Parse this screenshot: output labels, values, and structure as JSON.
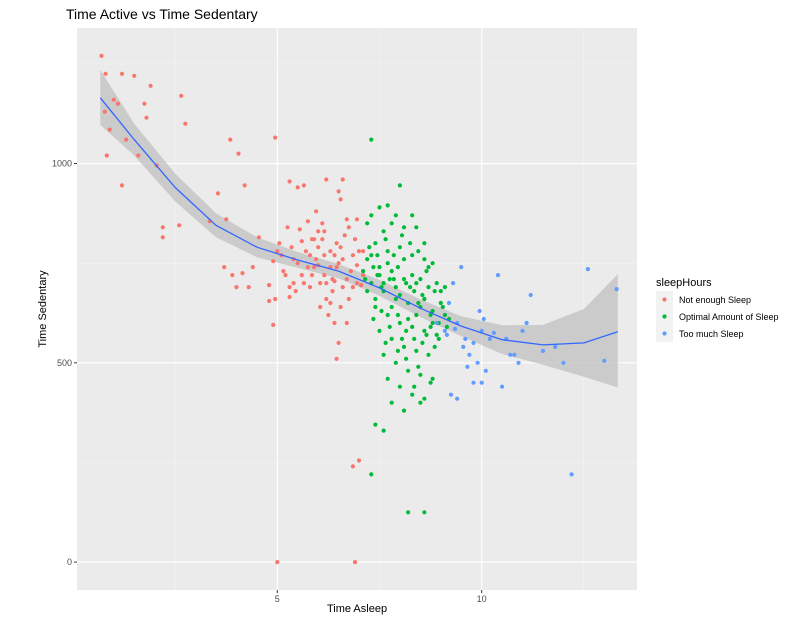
{
  "chart_data": {
    "type": "scatter",
    "title": "Time Active vs Time Sedentary",
    "xlabel": "Time Asleep",
    "ylabel": "Time Sedentary",
    "xlim": [
      0.1,
      13.8
    ],
    "ylim": [
      -70,
      1340
    ],
    "x_ticks": [
      5,
      10
    ],
    "x_tick_labels": [
      "5",
      "10"
    ],
    "y_ticks": [
      0,
      500,
      1000
    ],
    "y_tick_labels": [
      "0",
      "500",
      "1000"
    ],
    "grid": true,
    "legend": {
      "title": "sleepHours",
      "position": "right",
      "entries": [
        {
          "label": "Not enough Sleep",
          "color": "#F8766D"
        },
        {
          "label": "Optimal Amount of Sleep",
          "color": "#00BA38"
        },
        {
          "label": "Too much Sleep",
          "color": "#619CFF"
        }
      ]
    },
    "colors": {
      "panel": "#EBEBEB",
      "grid_major": "#FFFFFF",
      "grid_minor": "#F5F5F5",
      "smooth_line": "#3366FF",
      "confidence_band": "#BEBEBE"
    },
    "smooth": {
      "method": "loess",
      "x": [
        0.67,
        1.5,
        2.5,
        3.5,
        4.5,
        5.5,
        6.5,
        7.5,
        8.5,
        9.5,
        10.5,
        11.5,
        12.5,
        13.33
      ],
      "y": [
        1165,
        1060,
        940,
        845,
        790,
        758,
        730,
        688,
        637,
        592,
        558,
        545,
        550,
        578
      ],
      "lower": [
        1097,
        1020,
        905,
        815,
        765,
        738,
        712,
        668,
        615,
        567,
        522,
        495,
        465,
        438
      ],
      "upper": [
        1235,
        1100,
        975,
        875,
        815,
        778,
        748,
        708,
        659,
        617,
        594,
        595,
        635,
        722
      ]
    },
    "series": [
      {
        "name": "Not enough Sleep",
        "points": [
          [
            0.7,
            1270
          ],
          [
            0.8,
            1225
          ],
          [
            0.78,
            1130
          ],
          [
            0.9,
            1085
          ],
          [
            1.0,
            1160
          ],
          [
            1.1,
            1150
          ],
          [
            1.2,
            1225
          ],
          [
            0.83,
            1020
          ],
          [
            1.3,
            1060
          ],
          [
            1.5,
            1220
          ],
          [
            1.6,
            1020
          ],
          [
            1.75,
            1150
          ],
          [
            1.8,
            1115
          ],
          [
            1.9,
            1195
          ],
          [
            1.2,
            945
          ],
          [
            2.05,
            995
          ],
          [
            2.2,
            840
          ],
          [
            2.2,
            815
          ],
          [
            2.6,
            845
          ],
          [
            2.65,
            1170
          ],
          [
            2.75,
            1100
          ],
          [
            3.35,
            855
          ],
          [
            3.55,
            925
          ],
          [
            3.75,
            860
          ],
          [
            3.85,
            1060
          ],
          [
            4.05,
            1025
          ],
          [
            4.2,
            945
          ],
          [
            3.7,
            740
          ],
          [
            3.9,
            720
          ],
          [
            4.15,
            725
          ],
          [
            4.4,
            740
          ],
          [
            4.55,
            815
          ],
          [
            4.8,
            695
          ],
          [
            4.9,
            755
          ],
          [
            5.0,
            780
          ],
          [
            4.8,
            655
          ],
          [
            4.95,
            660
          ],
          [
            5.3,
            955
          ],
          [
            5.5,
            940
          ],
          [
            4.0,
            690
          ],
          [
            4.3,
            690
          ],
          [
            4.9,
            595
          ],
          [
            4.95,
            1065
          ],
          [
            5.3,
            665
          ],
          [
            5.4,
            700
          ],
          [
            5.55,
            835
          ],
          [
            5.75,
            855
          ],
          [
            5.85,
            810
          ],
          [
            6.0,
            790
          ],
          [
            6.1,
            850
          ],
          [
            6.15,
            720
          ],
          [
            6.2,
            660
          ],
          [
            6.4,
            705
          ],
          [
            6.5,
            930
          ],
          [
            6.6,
            760
          ],
          [
            6.75,
            840
          ],
          [
            5.0,
            0
          ],
          [
            6.9,
            0
          ],
          [
            6.85,
            240
          ],
          [
            7.0,
            255
          ],
          [
            6.45,
            510
          ],
          [
            6.5,
            550
          ],
          [
            6.2,
            960
          ],
          [
            6.55,
            910
          ],
          [
            6.6,
            960
          ],
          [
            6.7,
            860
          ],
          [
            6.3,
            780
          ],
          [
            5.8,
            770
          ],
          [
            5.9,
            740
          ],
          [
            6.05,
            700
          ],
          [
            6.35,
            680
          ],
          [
            6.55,
            640
          ],
          [
            6.7,
            600
          ],
          [
            5.2,
            720
          ],
          [
            5.35,
            790
          ],
          [
            5.6,
            805
          ],
          [
            5.7,
            780
          ],
          [
            6.0,
            745
          ],
          [
            6.85,
            690
          ],
          [
            6.95,
            745
          ],
          [
            7.0,
            780
          ],
          [
            5.1,
            770
          ],
          [
            6.95,
            860
          ],
          [
            6.3,
            650
          ],
          [
            6.65,
            820
          ],
          [
            5.65,
            945
          ],
          [
            6.25,
            620
          ],
          [
            7.05,
            695
          ],
          [
            5.45,
            680
          ],
          [
            6.8,
            730
          ],
          [
            5.85,
            720
          ],
          [
            6.15,
            830
          ],
          [
            6.45,
            800
          ],
          [
            7.1,
            720
          ],
          [
            5.95,
            880
          ],
          [
            6.4,
            600
          ],
          [
            5.5,
            750
          ],
          [
            6.75,
            660
          ],
          [
            5.25,
            840
          ],
          [
            6.05,
            640
          ],
          [
            6.9,
            810
          ],
          [
            5.4,
            760
          ],
          [
            6.3,
            740
          ],
          [
            5.65,
            700
          ],
          [
            6.6,
            690
          ],
          [
            7.1,
            780
          ],
          [
            5.8,
            690
          ],
          [
            6.15,
            770
          ],
          [
            6.5,
            750
          ],
          [
            6.95,
            700
          ],
          [
            5.15,
            730
          ],
          [
            6.2,
            700
          ],
          [
            6.45,
            740
          ],
          [
            5.95,
            760
          ],
          [
            5.6,
            720
          ],
          [
            6.85,
            770
          ],
          [
            5.3,
            690
          ],
          [
            6.1,
            810
          ],
          [
            6.35,
            710
          ],
          [
            5.75,
            740
          ],
          [
            6.7,
            710
          ],
          [
            5.05,
            800
          ],
          [
            6.55,
            790
          ],
          [
            5.9,
            810
          ],
          [
            6.0,
            830
          ],
          [
            6.4,
            770
          ]
        ]
      },
      {
        "name": "Optimal Amount of Sleep",
        "points": [
          [
            7.3,
            1060
          ],
          [
            7.3,
            870
          ],
          [
            7.5,
            890
          ],
          [
            7.7,
            895
          ],
          [
            7.9,
            870
          ],
          [
            8.0,
            945
          ],
          [
            8.3,
            870
          ],
          [
            7.2,
            850
          ],
          [
            7.6,
            830
          ],
          [
            7.8,
            850
          ],
          [
            8.1,
            840
          ],
          [
            8.4,
            840
          ],
          [
            8.6,
            800
          ],
          [
            7.4,
            800
          ],
          [
            7.7,
            780
          ],
          [
            8.0,
            790
          ],
          [
            8.3,
            770
          ],
          [
            8.6,
            760
          ],
          [
            8.8,
            750
          ],
          [
            7.2,
            760
          ],
          [
            7.5,
            740
          ],
          [
            7.8,
            730
          ],
          [
            8.1,
            710
          ],
          [
            8.4,
            700
          ],
          [
            8.7,
            690
          ],
          [
            9.0,
            680
          ],
          [
            7.3,
            700
          ],
          [
            7.6,
            680
          ],
          [
            7.9,
            660
          ],
          [
            8.2,
            650
          ],
          [
            8.5,
            640
          ],
          [
            8.8,
            630
          ],
          [
            9.1,
            620
          ],
          [
            7.4,
            640
          ],
          [
            7.7,
            620
          ],
          [
            8.0,
            600
          ],
          [
            8.3,
            590
          ],
          [
            8.6,
            580
          ],
          [
            8.9,
            570
          ],
          [
            7.5,
            580
          ],
          [
            7.8,
            560
          ],
          [
            8.1,
            540
          ],
          [
            8.4,
            530
          ],
          [
            8.7,
            520
          ],
          [
            7.6,
            520
          ],
          [
            7.9,
            500
          ],
          [
            8.2,
            480
          ],
          [
            8.5,
            470
          ],
          [
            8.8,
            460
          ],
          [
            7.7,
            460
          ],
          [
            8.0,
            440
          ],
          [
            8.3,
            420
          ],
          [
            8.6,
            410
          ],
          [
            7.8,
            400
          ],
          [
            8.1,
            380
          ],
          [
            8.5,
            400
          ],
          [
            7.4,
            345
          ],
          [
            7.6,
            330
          ],
          [
            7.3,
            220
          ],
          [
            8.2,
            125
          ],
          [
            8.6,
            125
          ],
          [
            7.1,
            730
          ],
          [
            7.3,
            770
          ],
          [
            7.5,
            720
          ],
          [
            7.7,
            750
          ],
          [
            7.9,
            690
          ],
          [
            8.1,
            760
          ],
          [
            8.3,
            720
          ],
          [
            8.5,
            710
          ],
          [
            8.7,
            740
          ],
          [
            8.9,
            700
          ],
          [
            9.1,
            690
          ],
          [
            7.2,
            680
          ],
          [
            7.4,
            660
          ],
          [
            7.6,
            700
          ],
          [
            7.8,
            640
          ],
          [
            8.0,
            670
          ],
          [
            8.2,
            610
          ],
          [
            8.4,
            620
          ],
          [
            8.6,
            660
          ],
          [
            8.8,
            600
          ],
          [
            9.0,
            650
          ],
          [
            9.2,
            610
          ],
          [
            7.35,
            610
          ],
          [
            7.55,
            630
          ],
          [
            7.75,
            590
          ],
          [
            7.95,
            620
          ],
          [
            8.15,
            580
          ],
          [
            8.35,
            560
          ],
          [
            8.55,
            550
          ],
          [
            8.75,
            590
          ],
          [
            8.95,
            560
          ],
          [
            7.25,
            790
          ],
          [
            7.45,
            770
          ],
          [
            7.65,
            810
          ],
          [
            7.85,
            770
          ],
          [
            8.05,
            820
          ],
          [
            8.25,
            800
          ],
          [
            8.45,
            780
          ],
          [
            8.65,
            730
          ],
          [
            8.85,
            680
          ],
          [
            9.05,
            640
          ],
          [
            7.15,
            710
          ],
          [
            7.35,
            740
          ],
          [
            7.55,
            690
          ],
          [
            7.75,
            710
          ],
          [
            7.95,
            740
          ],
          [
            8.15,
            700
          ],
          [
            8.35,
            680
          ],
          [
            8.55,
            670
          ],
          [
            8.75,
            620
          ],
          [
            8.95,
            600
          ],
          [
            9.15,
            590
          ],
          [
            7.45,
            720
          ],
          [
            7.85,
            710
          ],
          [
            8.25,
            690
          ],
          [
            8.45,
            650
          ],
          [
            8.65,
            570
          ],
          [
            8.05,
            560
          ],
          [
            8.45,
            490
          ],
          [
            8.75,
            450
          ],
          [
            8.35,
            440
          ],
          [
            7.95,
            530
          ],
          [
            8.85,
            540
          ],
          [
            7.65,
            550
          ],
          [
            8.15,
            510
          ]
        ]
      },
      {
        "name": "Too much Sleep",
        "points": [
          [
            8.9,
            600
          ],
          [
            9.1,
            580
          ],
          [
            9.2,
            650
          ],
          [
            9.3,
            700
          ],
          [
            9.35,
            585
          ],
          [
            9.4,
            600
          ],
          [
            9.5,
            740
          ],
          [
            9.6,
            560
          ],
          [
            9.7,
            520
          ],
          [
            9.8,
            550
          ],
          [
            9.9,
            500
          ],
          [
            10.0,
            580
          ],
          [
            10.05,
            610
          ],
          [
            9.25,
            420
          ],
          [
            9.4,
            410
          ],
          [
            9.65,
            490
          ],
          [
            9.8,
            450
          ],
          [
            10.0,
            450
          ],
          [
            10.1,
            480
          ],
          [
            10.2,
            560
          ],
          [
            10.3,
            575
          ],
          [
            10.4,
            720
          ],
          [
            10.5,
            440
          ],
          [
            10.6,
            560
          ],
          [
            10.7,
            520
          ],
          [
            10.8,
            520
          ],
          [
            10.9,
            500
          ],
          [
            11.0,
            580
          ],
          [
            11.1,
            600
          ],
          [
            11.2,
            670
          ],
          [
            11.5,
            530
          ],
          [
            11.8,
            540
          ],
          [
            12.0,
            500
          ],
          [
            12.2,
            220
          ],
          [
            12.6,
            735
          ],
          [
            13.0,
            505
          ],
          [
            13.3,
            685
          ],
          [
            9.15,
            570
          ],
          [
            9.55,
            540
          ],
          [
            9.95,
            630
          ]
        ]
      }
    ]
  }
}
